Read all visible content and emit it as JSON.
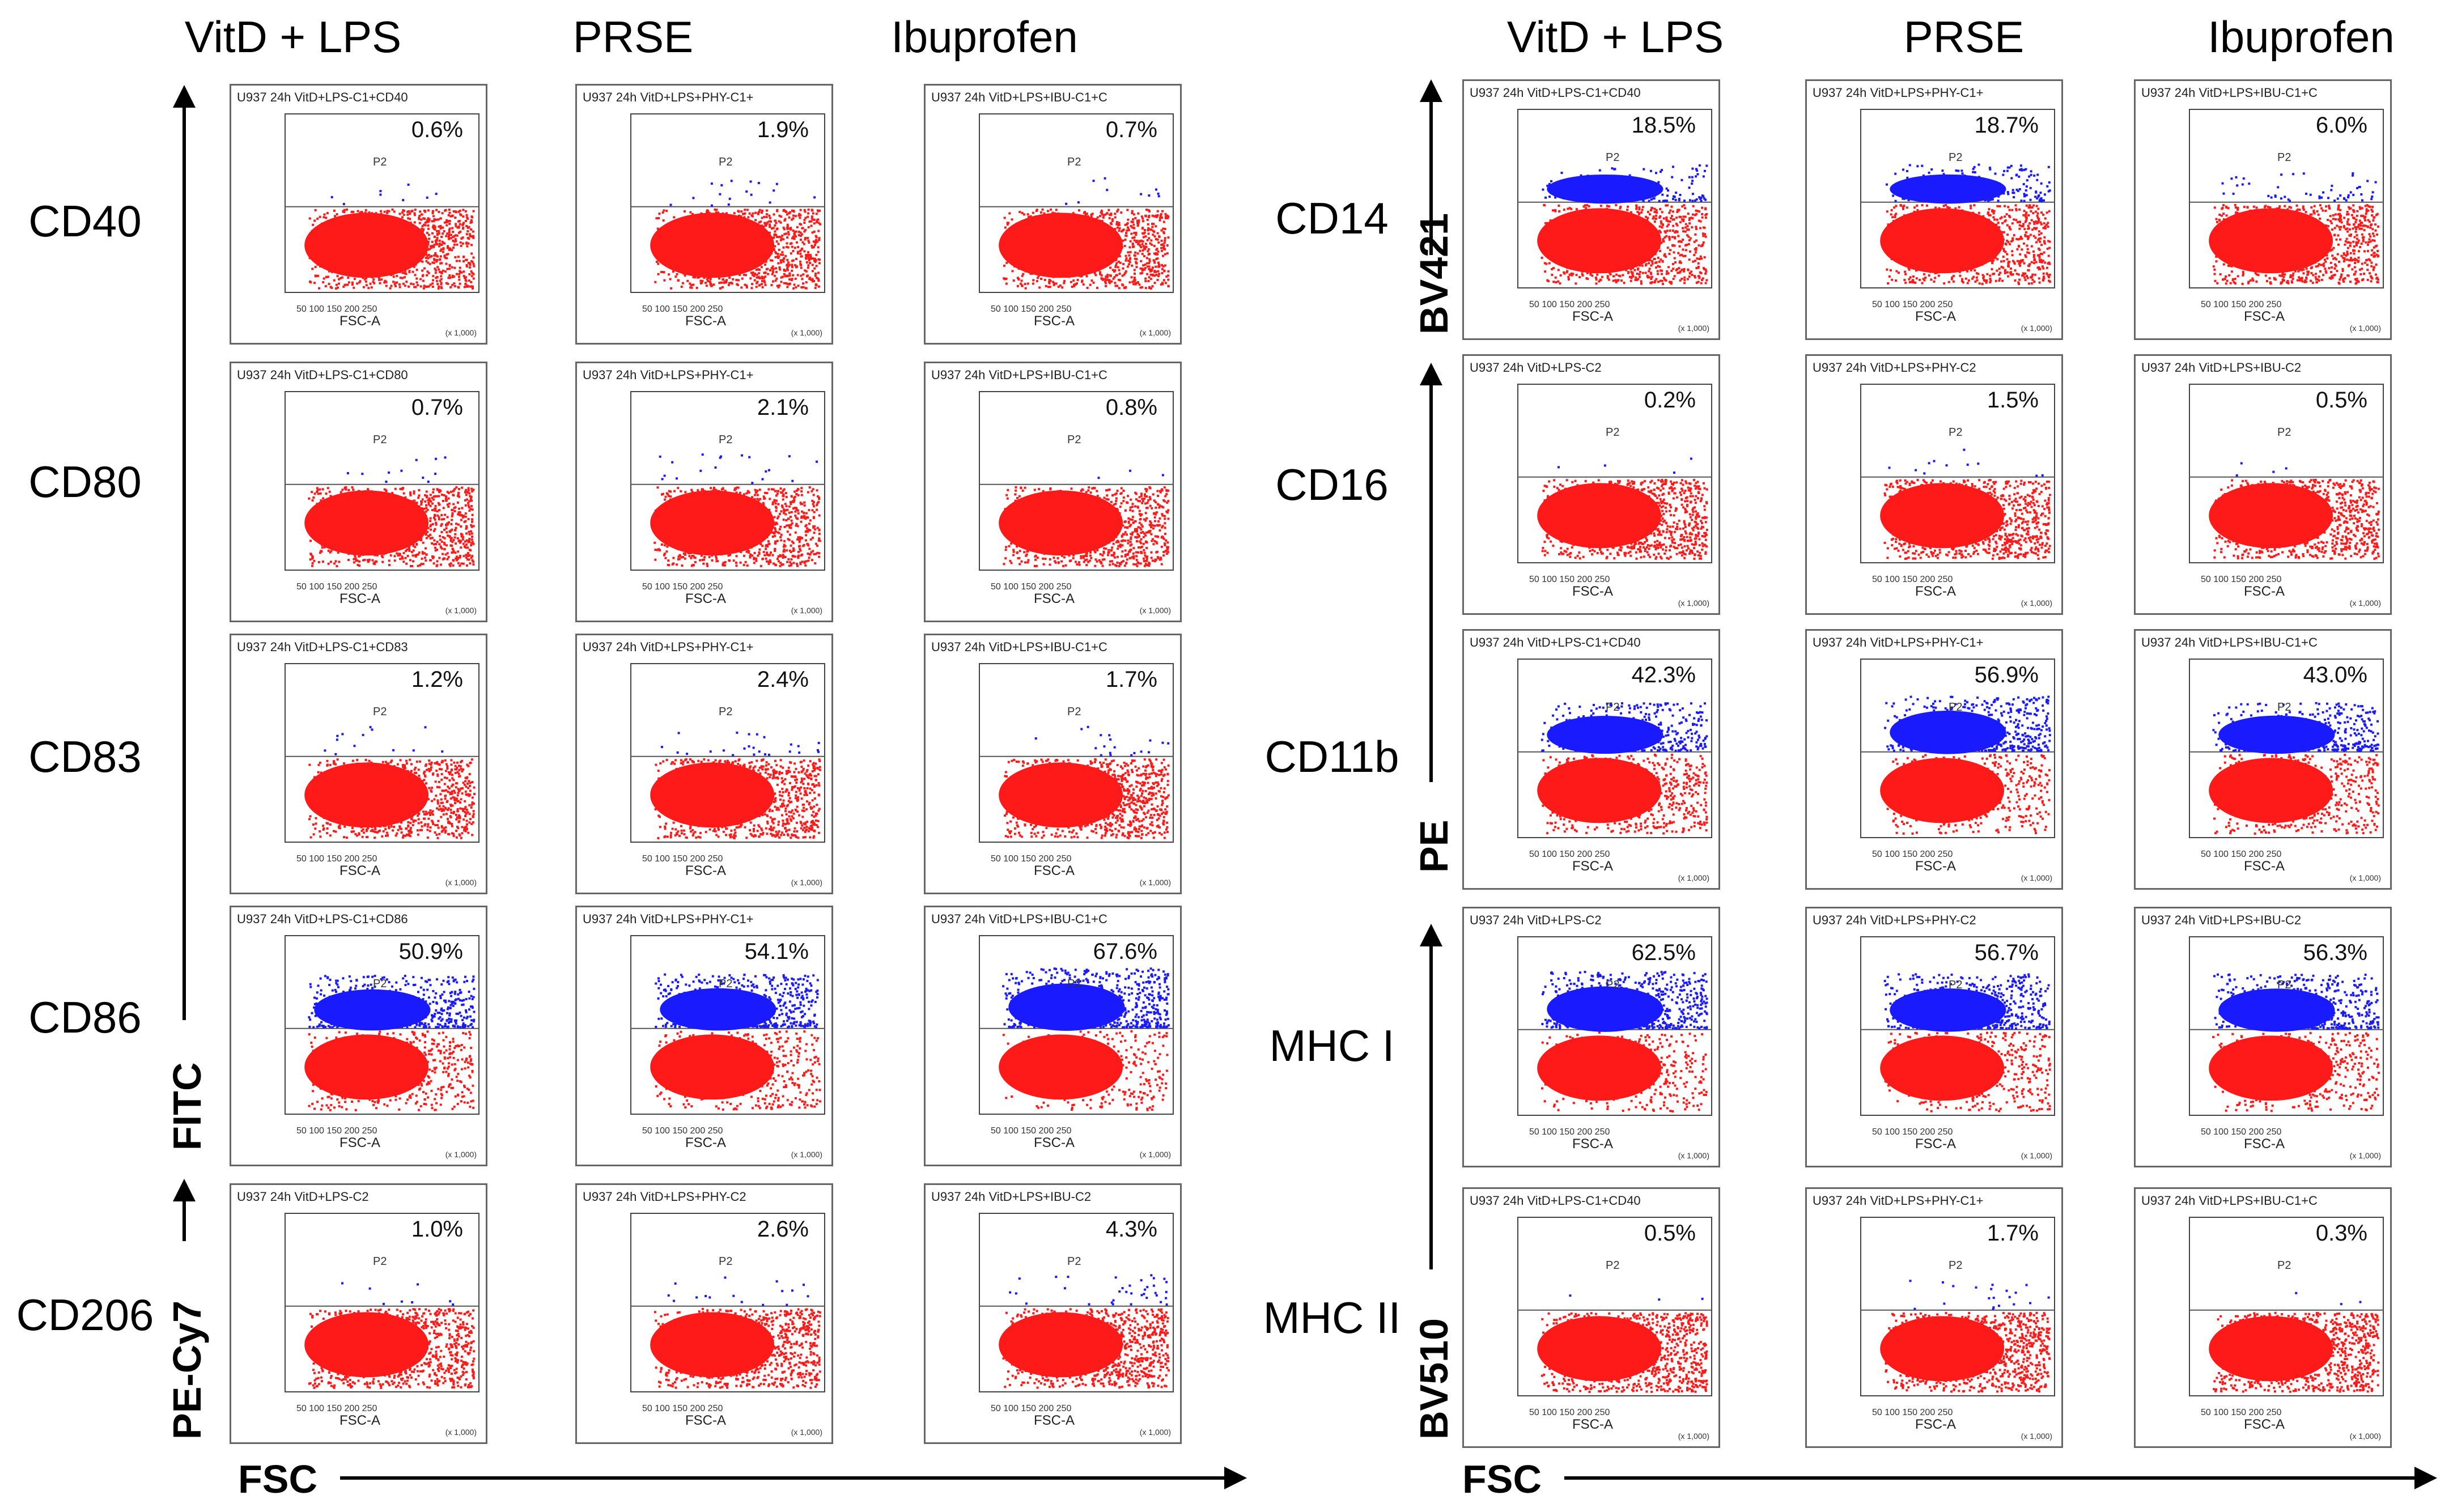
{
  "left": {
    "columns": [
      "VitD + LPS",
      "PRSE",
      "Ibuprofen"
    ],
    "rows": [
      {
        "label": "CD40",
        "panels": [
          {
            "title": "U937 24h VitD+LPS-C1+CD40",
            "pct": "0.6%"
          },
          {
            "title": "U937 24h VitD+LPS+PHY-C1+",
            "pct": "1.9%"
          },
          {
            "title": "U937 24h VitD+LPS+IBU-C1+C",
            "pct": "0.7%"
          }
        ]
      },
      {
        "label": "CD80",
        "panels": [
          {
            "title": "U937 24h VitD+LPS-C1+CD80",
            "pct": "0.7%"
          },
          {
            "title": "U937 24h VitD+LPS+PHY-C1+",
            "pct": "2.1%"
          },
          {
            "title": "U937 24h VitD+LPS+IBU-C1+C",
            "pct": "0.8%"
          }
        ]
      },
      {
        "label": "CD83",
        "panels": [
          {
            "title": "U937 24h VitD+LPS-C1+CD83",
            "pct": "1.2%"
          },
          {
            "title": "U937 24h VitD+LPS+PHY-C1+",
            "pct": "2.4%"
          },
          {
            "title": "U937 24h VitD+LPS+IBU-C1+C",
            "pct": "1.7%"
          }
        ]
      },
      {
        "label": "CD86",
        "panels": [
          {
            "title": "U937 24h VitD+LPS-C1+CD86",
            "pct": "50.9%"
          },
          {
            "title": "U937 24h VitD+LPS+PHY-C1+",
            "pct": "54.1%"
          },
          {
            "title": "U937 24h VitD+LPS+IBU-C1+C",
            "pct": "67.6%"
          }
        ]
      },
      {
        "label": "CD206",
        "panels": [
          {
            "title": "U937 24h VitD+LPS-C2",
            "pct": "1.0%"
          },
          {
            "title": "U937 24h VitD+LPS+PHY-C2",
            "pct": "2.6%"
          },
          {
            "title": "U937 24h VitD+LPS+IBU-C2",
            "pct": "4.3%"
          }
        ]
      }
    ],
    "y_axes": [
      "FITC",
      "PE-Cy7"
    ],
    "x_axis": "FSC"
  },
  "right": {
    "columns": [
      "VitD + LPS",
      "PRSE",
      "Ibuprofen"
    ],
    "rows": [
      {
        "label": "CD14",
        "panels": [
          {
            "title": "U937 24h VitD+LPS-C1+CD40",
            "pct": "18.5%"
          },
          {
            "title": "U937 24h VitD+LPS+PHY-C1+",
            "pct": "18.7%"
          },
          {
            "title": "U937 24h VitD+LPS+IBU-C1+C",
            "pct": "6.0%"
          }
        ]
      },
      {
        "label": "CD16",
        "panels": [
          {
            "title": "U937 24h VitD+LPS-C2",
            "pct": "0.2%"
          },
          {
            "title": "U937 24h VitD+LPS+PHY-C2",
            "pct": "1.5%"
          },
          {
            "title": "U937 24h VitD+LPS+IBU-C2",
            "pct": "0.5%"
          }
        ]
      },
      {
        "label": "CD11b",
        "panels": [
          {
            "title": "U937 24h VitD+LPS-C1+CD40",
            "pct": "42.3%"
          },
          {
            "title": "U937 24h VitD+LPS+PHY-C1+",
            "pct": "56.9%"
          },
          {
            "title": "U937 24h VitD+LPS+IBU-C1+C",
            "pct": "43.0%"
          }
        ]
      },
      {
        "label": "MHC I",
        "panels": [
          {
            "title": "U937 24h VitD+LPS-C2",
            "pct": "62.5%"
          },
          {
            "title": "U937 24h VitD+LPS+PHY-C2",
            "pct": "56.7%"
          },
          {
            "title": "U937 24h VitD+LPS+IBU-C2",
            "pct": "56.3%"
          }
        ]
      },
      {
        "label": "MHC II",
        "panels": [
          {
            "title": "U937 24h VitD+LPS-C1+CD40",
            "pct": "0.5%"
          },
          {
            "title": "U937 24h VitD+LPS+PHY-C1+",
            "pct": "1.7%"
          },
          {
            "title": "U937 24h VitD+LPS+IBU-C1+C",
            "pct": "0.3%"
          }
        ]
      }
    ],
    "y_axes": [
      "BV421",
      "PE",
      "BV510"
    ],
    "x_axis": "FSC"
  },
  "panel_text": {
    "gate": "P2",
    "x_label": "FSC-A",
    "x_scale": "(x 1,000)",
    "x_ticks": "50   100   150   200   250"
  },
  "colors": {
    "positive": "#1a1aff",
    "negative": "#ff1a1a",
    "border": "#666666"
  }
}
